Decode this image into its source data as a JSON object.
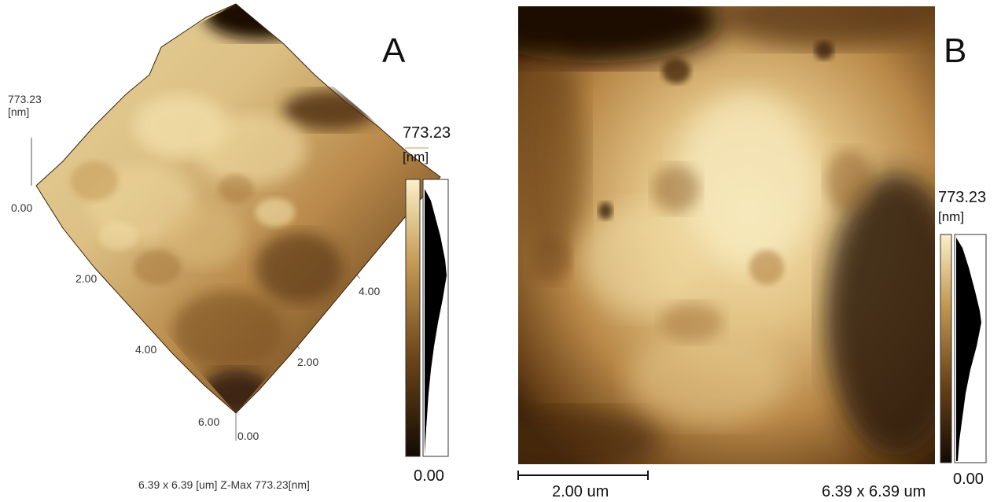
{
  "panel_a": {
    "letter": "A",
    "z_top": "773.23",
    "z_unit": "[nm]",
    "z_zero": "0.00",
    "axis_left_ticks": [
      "2.00",
      "4.00",
      "6.00"
    ],
    "axis_right_ticks": [
      "0.00",
      "2.00",
      "4.00"
    ],
    "bar_top": "773.23",
    "bar_unit": "[nm]",
    "bar_bottom": "0.00",
    "caption": "6.39 x 6.39 [um]  Z-Max 773.23[nm]"
  },
  "panel_b": {
    "letter": "B",
    "bar_top": "773.23",
    "bar_unit": "[nm]",
    "bar_bottom": "0.00",
    "scalebar_label": "2.00 um",
    "size_label": "6.39 x 6.39 um"
  },
  "colors": {
    "dark": "#1a0e05",
    "mid": "#9c6a2e",
    "light": "#f6e7b8"
  }
}
